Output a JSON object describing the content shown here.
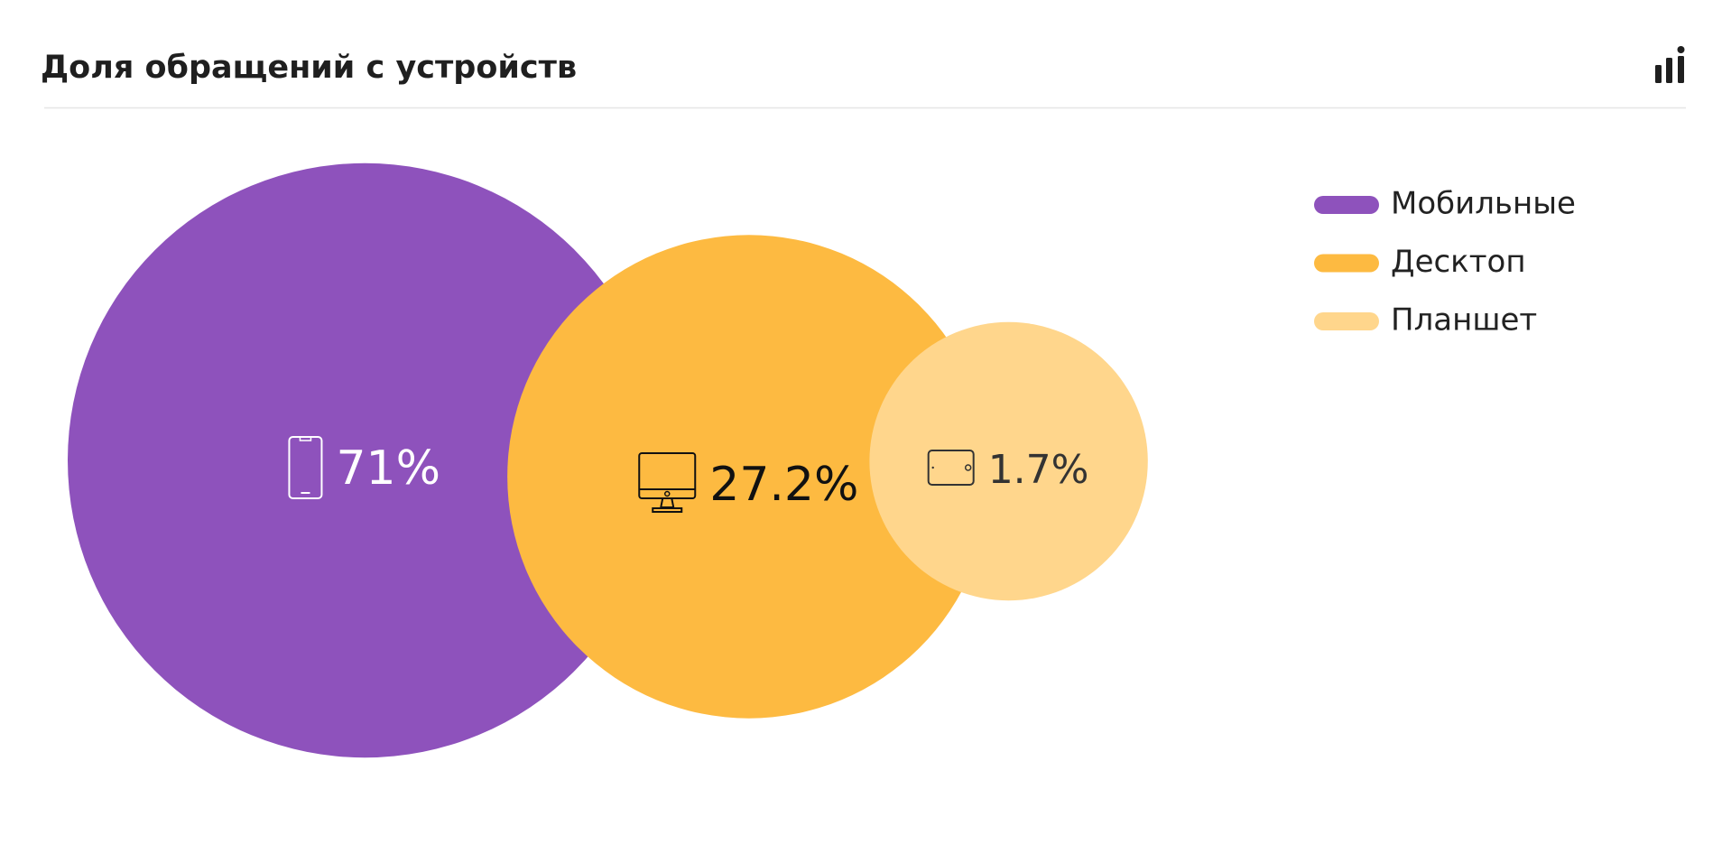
{
  "chart_data": {
    "type": "bubble",
    "title": "Доля обращений с устройств",
    "categories": [
      "Мобильные",
      "Десктоп",
      "Планшет"
    ],
    "values": [
      71,
      27.2,
      1.7
    ],
    "value_labels": [
      "71%",
      "27.2%",
      "1.7%"
    ],
    "colors": [
      "#8e52bc",
      "#fdba41",
      "#ffd68c"
    ],
    "legend": "right"
  }
}
